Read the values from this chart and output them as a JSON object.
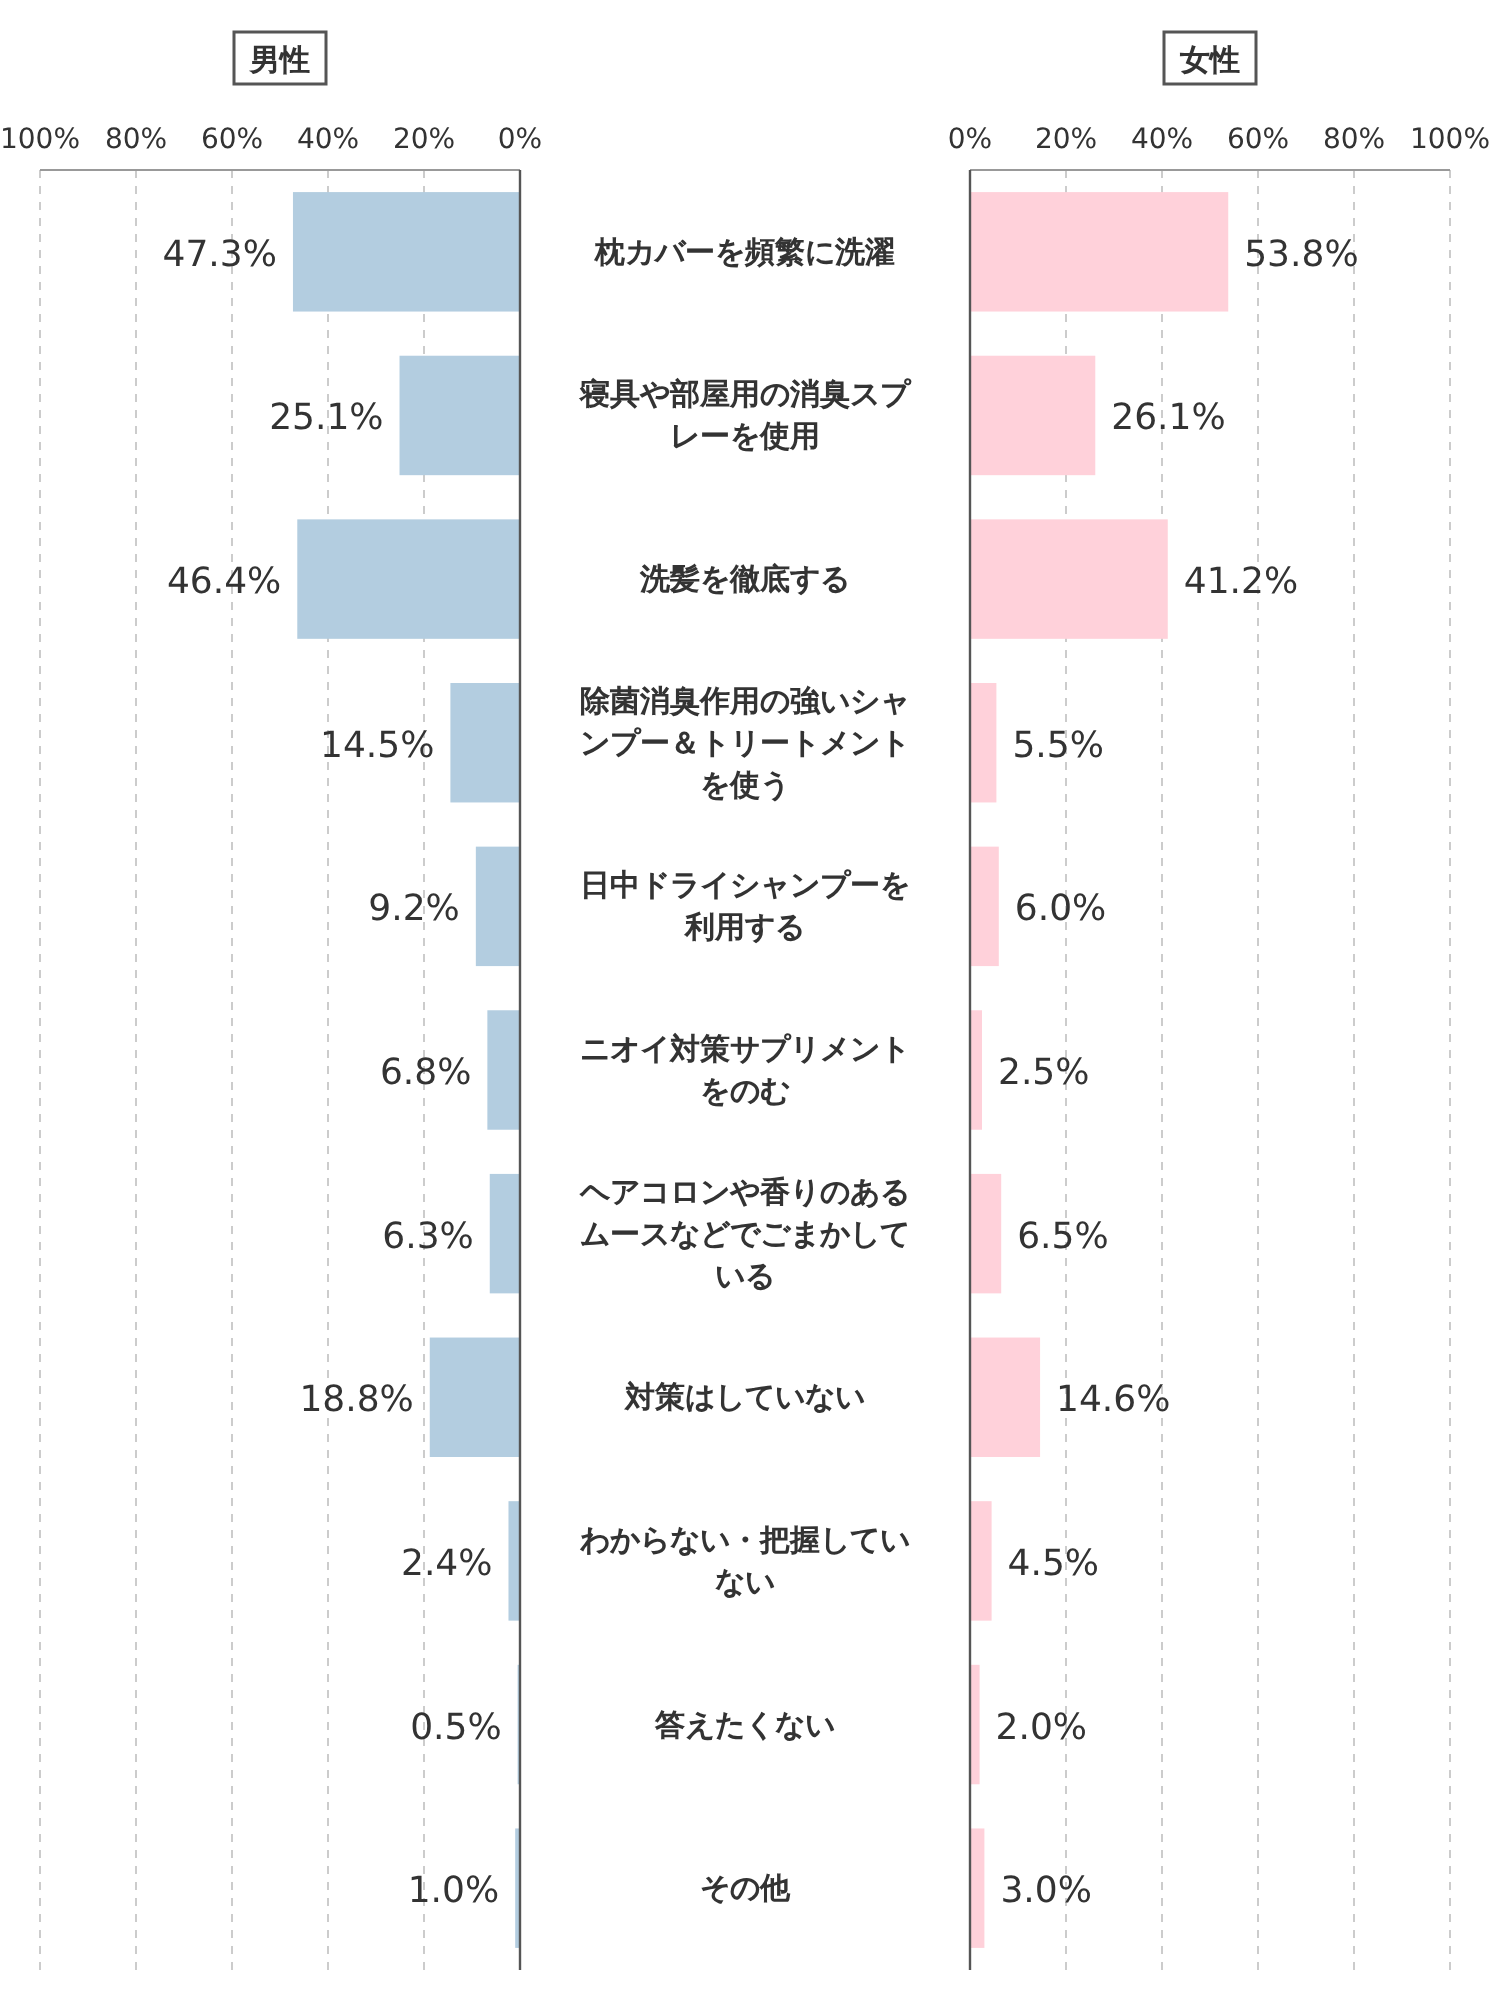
{
  "chart_data": [
    {
      "type": "bar",
      "orientation": "horizontal",
      "title": "男性",
      "categories": [
        "枕カバーを頻繁に洗濯",
        "寝具や部屋用の消臭スプレーを使用",
        "洗髪を徹底する",
        "除菌消臭作用の強いシャンプー＆トリートメントを使う",
        "日中ドライシャンプーを利用する",
        "ニオイ対策サプリメントをのむ",
        "ヘアコロンや香りのあるムースなどでごまかしている",
        "対策はしていない",
        "わからない・把握していない",
        "答えたくない",
        "その他"
      ],
      "values": [
        47.3,
        25.1,
        46.4,
        14.5,
        9.2,
        6.8,
        6.3,
        18.8,
        2.4,
        0.5,
        1.0
      ],
      "value_labels": [
        "47.3%",
        "25.1%",
        "46.4%",
        "14.5%",
        "9.2%",
        "6.8%",
        "6.3%",
        "18.8%",
        "2.4%",
        "0.5%",
        "1.0%"
      ],
      "color": "#b3cde0",
      "xlim": [
        100,
        0
      ],
      "xticks": [
        {
          "value": 100,
          "label": "100%"
        },
        {
          "value": 80,
          "label": "80%"
        },
        {
          "value": 60,
          "label": "60%"
        },
        {
          "value": 40,
          "label": "40%"
        },
        {
          "value": 20,
          "label": "20%"
        },
        {
          "value": 0,
          "label": "0%"
        }
      ],
      "grid": "x"
    },
    {
      "type": "bar",
      "orientation": "horizontal",
      "title": "女性",
      "values": [
        53.8,
        26.1,
        41.2,
        5.5,
        6.0,
        2.5,
        6.5,
        14.6,
        4.5,
        2.0,
        3.0
      ],
      "value_labels": [
        "53.8%",
        "26.1%",
        "41.2%",
        "5.5%",
        "6.0%",
        "2.5%",
        "6.5%",
        "14.6%",
        "4.5%",
        "2.0%",
        "3.0%"
      ],
      "color": "#ffd1da",
      "xlim": [
        0,
        100
      ],
      "xticks": [
        {
          "value": 0,
          "label": "0%"
        },
        {
          "value": 20,
          "label": "20%"
        },
        {
          "value": 40,
          "label": "40%"
        },
        {
          "value": 60,
          "label": "60%"
        },
        {
          "value": 80,
          "label": "80%"
        },
        {
          "value": 100,
          "label": "100%"
        }
      ],
      "grid": "x",
      "tick_labels": "x"
    }
  ]
}
